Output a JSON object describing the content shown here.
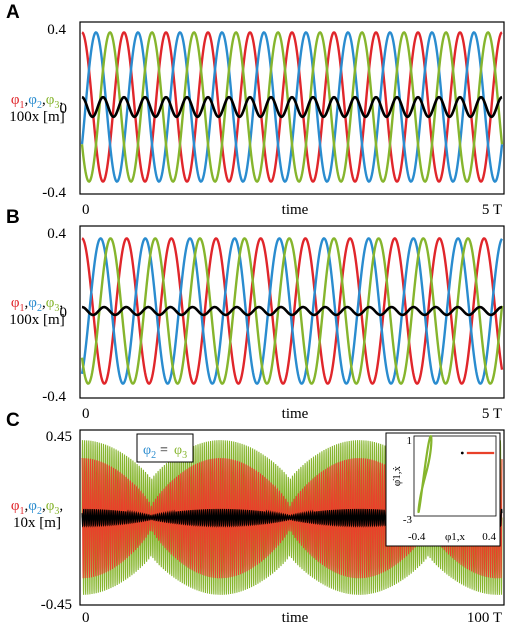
{
  "colors": {
    "phi1": "#e0262b",
    "phi2": "#2a8ccf",
    "phi3": "#86b52d",
    "x": "#000000",
    "inset_x": "#e8412a"
  },
  "chart_data": [
    {
      "panel": "A",
      "type": "line",
      "xlabel": "time",
      "ylabel": {
        "prefix": "φ",
        "subs": [
          "1",
          "2",
          "3"
        ],
        "line2": "100x [m]"
      },
      "ylim": [
        -0.4,
        0.4
      ],
      "y_ticks": [
        "0.4",
        "0",
        "-0.4"
      ],
      "x_ticks": [
        "0",
        "5 T"
      ],
      "grid": false,
      "series": [
        {
          "amplitude": 0.38,
          "cycles": 10,
          "phase_deg": 90
        },
        {
          "amplitude": 0.38,
          "cycles": 10,
          "phase_deg": -30
        },
        {
          "amplitude": 0.38,
          "cycles": 10,
          "phase_deg": 210
        },
        {
          "amplitude": 0.05,
          "cycles": 20,
          "phase_deg": 90
        }
      ]
    },
    {
      "panel": "B",
      "type": "line",
      "xlabel": "time",
      "ylabel": {
        "prefix": "φ",
        "subs": [
          "1",
          "2",
          "3"
        ],
        "line2": "100x [m]"
      },
      "ylim": [
        -0.4,
        0.4
      ],
      "y_ticks": [
        "0.4",
        "0",
        "-0.4"
      ],
      "x_ticks": [
        "0",
        "5 T"
      ],
      "grid": false,
      "series": [
        {
          "amplitude": 0.37,
          "cycles": 9.4,
          "phase_deg": 90
        },
        {
          "amplitude": 0.37,
          "cycles": 9.4,
          "phase_deg": -60
        },
        {
          "amplitude": 0.37,
          "cycles": 9.4,
          "phase_deg": 220
        },
        {
          "amplitude": 0.02,
          "cycles": 19,
          "phase_deg": 90
        }
      ]
    },
    {
      "panel": "C",
      "type": "line",
      "xlabel": "time",
      "ylabel": {
        "prefix": "φ",
        "subs": [
          "1",
          "2",
          "3"
        ],
        "line2": "10x [m]"
      },
      "ylim": [
        -0.45,
        0.45
      ],
      "y_ticks": [
        "0.45",
        "-0.45"
      ],
      "x_ticks": [
        "0",
        "100 T"
      ],
      "grid": false,
      "legend": {
        "text": "φ",
        "sub_a": "2",
        "eq": " = ",
        "sub_b": "3",
        "placement": "top-left"
      },
      "envelope_period_T": 33,
      "series": [
        {
          "name": "φ2 = φ3",
          "envelope": [
            0.41,
            0.2,
            0.41
          ]
        },
        {
          "name": "φ1",
          "envelope": [
            0.32,
            0.06,
            0.32
          ]
        },
        {
          "name": "x",
          "envelope": [
            0.045,
            0.01,
            0.045
          ]
        }
      ],
      "inset": {
        "xlabel": "φ1,x",
        "ylabel": "φ̇1,ẋ",
        "x_ticks": [
          "-0.4",
          "0.4"
        ],
        "y_ticks": [
          "1",
          "-3"
        ],
        "xlim": [
          -0.45,
          0.45
        ],
        "ylim": [
          -3,
          1
        ]
      }
    }
  ]
}
